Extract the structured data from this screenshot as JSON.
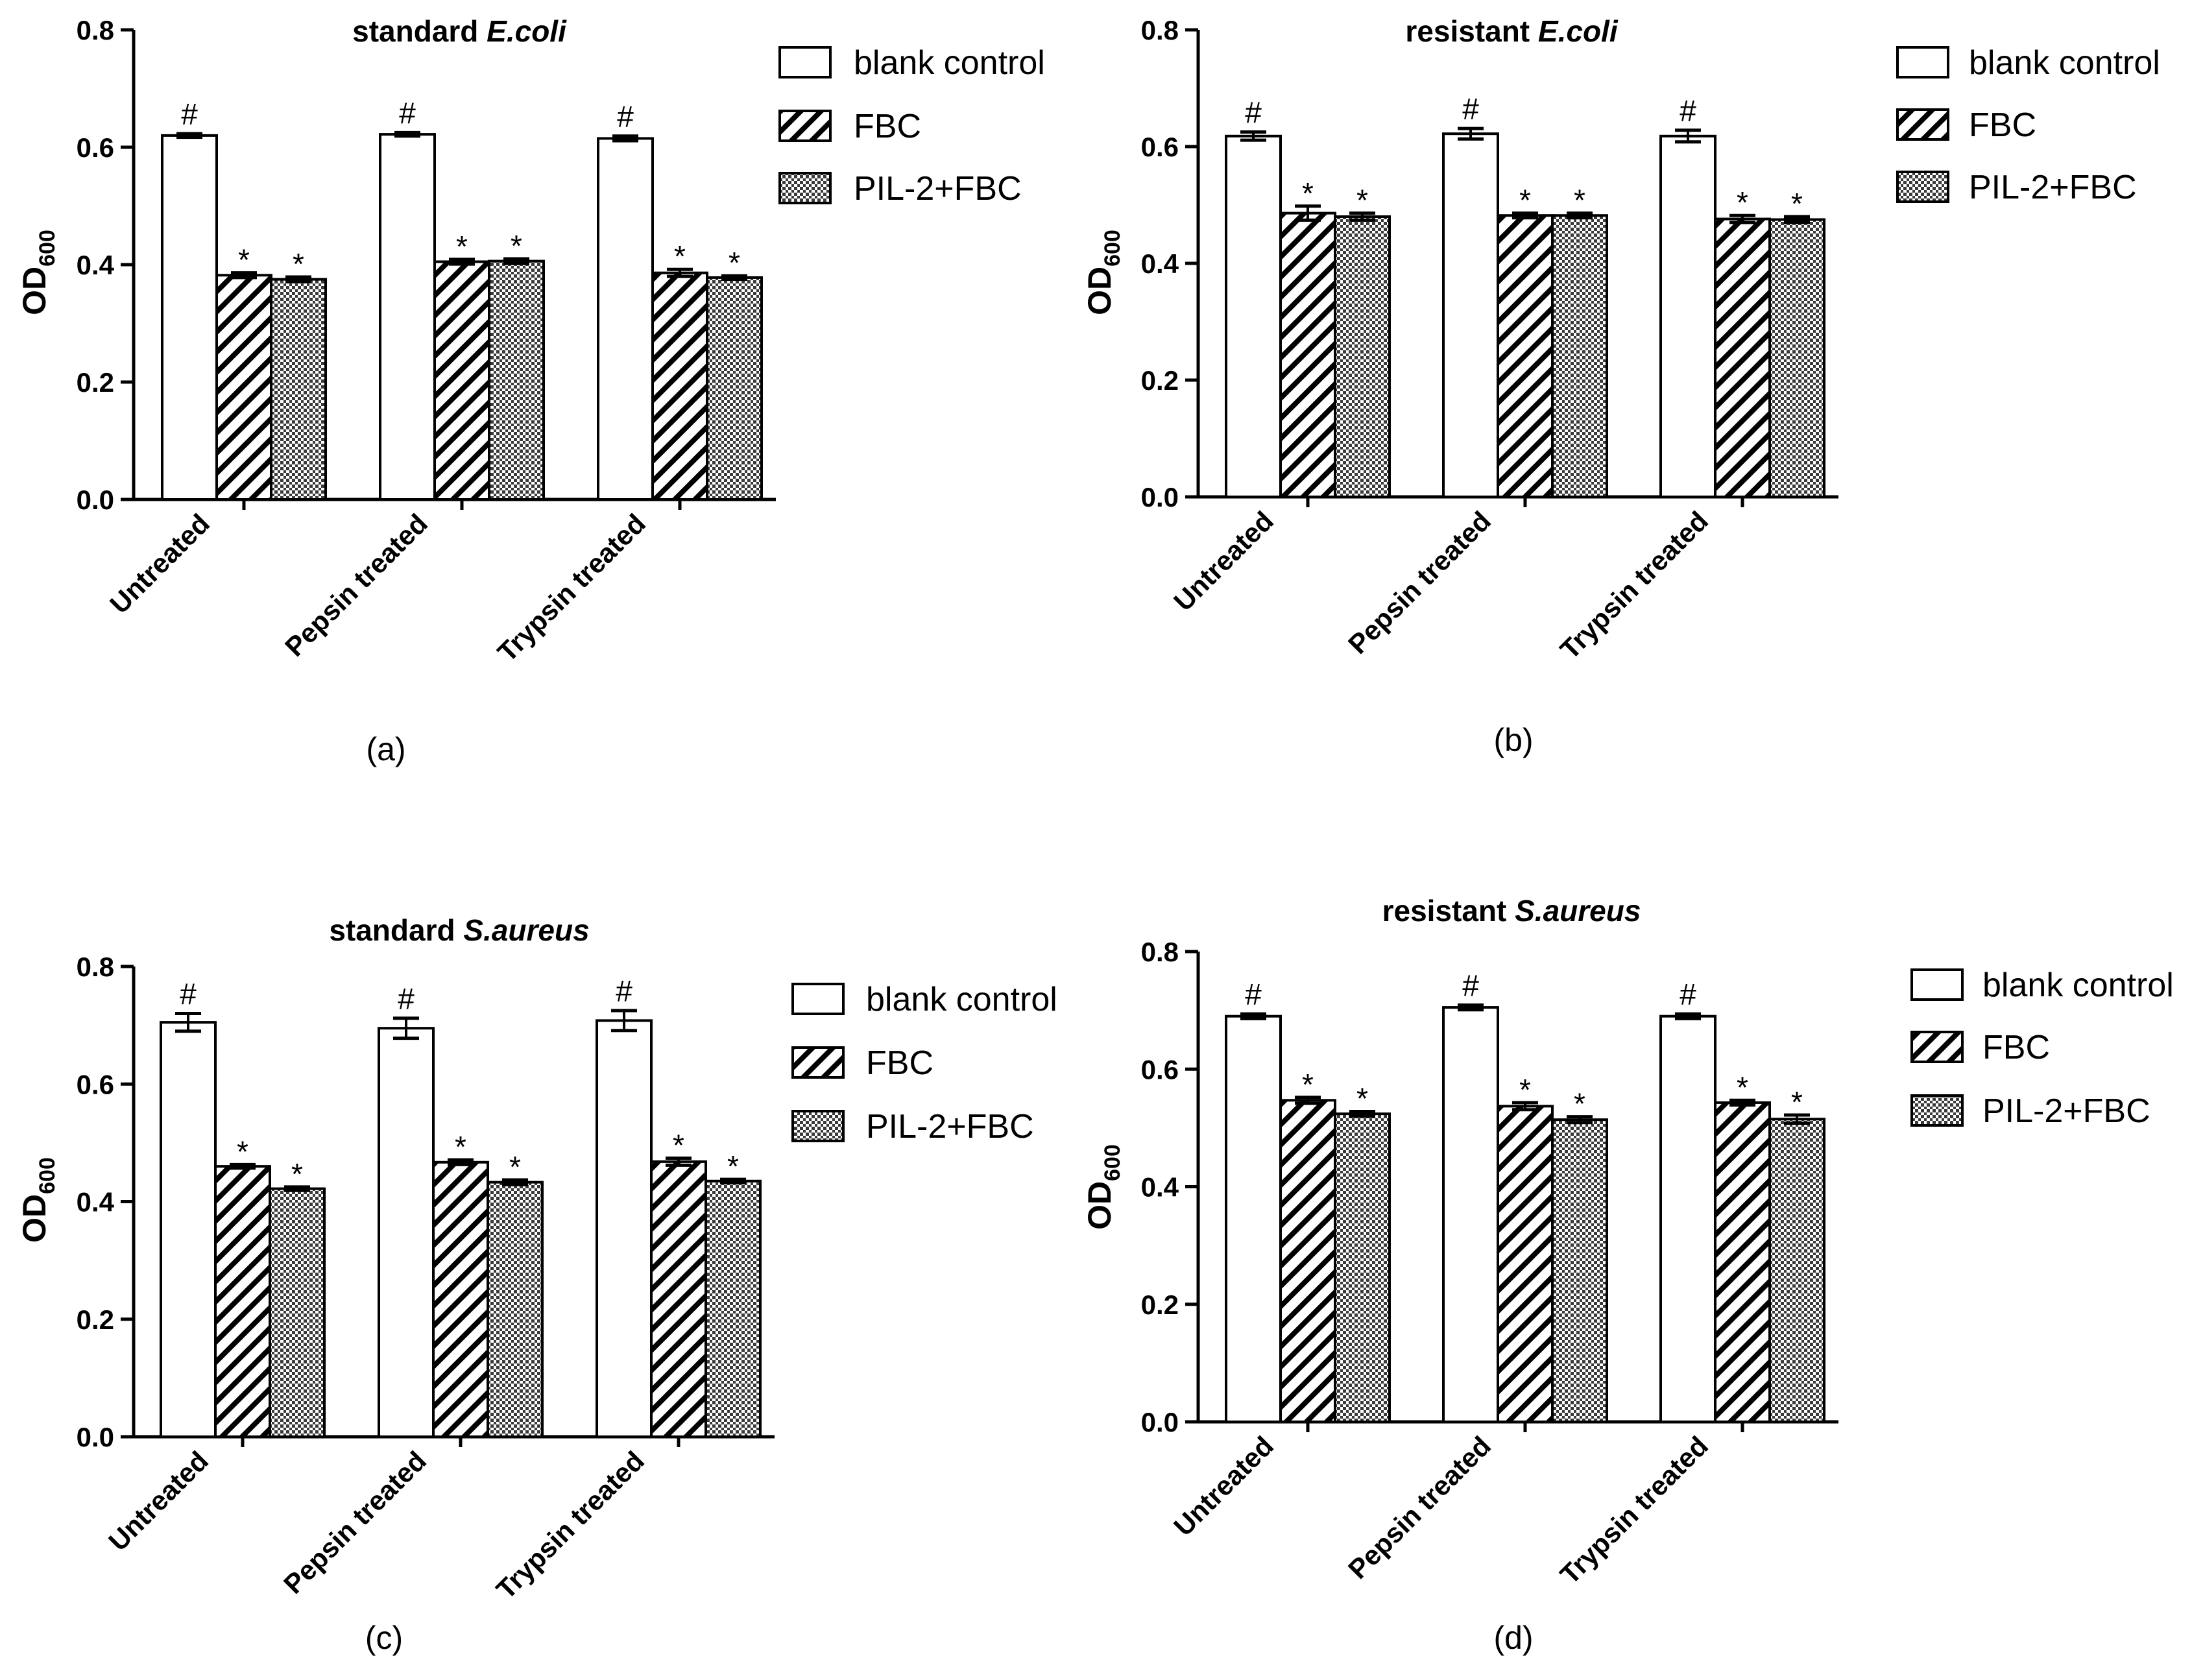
{
  "chart_data": [
    {
      "type": "bar",
      "panel_label": "(a)",
      "title_prefix": "standard ",
      "title_species": "E.coli",
      "ylabel_main": "OD",
      "ylabel_sub": "600",
      "ylim": [
        0,
        0.8
      ],
      "yticks": [
        "0.0",
        "0.2",
        "0.4",
        "0.6",
        "0.8"
      ],
      "ytick_values": [
        0,
        0.2,
        0.4,
        0.6,
        0.8
      ],
      "categories": [
        "Untreated",
        "Pepsin treated",
        "Trypsin treated"
      ],
      "series": [
        {
          "name": "blank control",
          "pattern": "none",
          "values": [
            0.62,
            0.622,
            0.615
          ],
          "errors": [
            0.003,
            0.003,
            0.004
          ],
          "markers": [
            "#",
            "#",
            "#"
          ]
        },
        {
          "name": "FBC",
          "pattern": "diagonal",
          "values": [
            0.382,
            0.405,
            0.386
          ],
          "errors": [
            0.004,
            0.004,
            0.006
          ],
          "markers": [
            "*",
            "*",
            "*"
          ]
        },
        {
          "name": "PIL-2+FBC",
          "pattern": "crosshatch",
          "values": [
            0.375,
            0.406,
            0.378
          ],
          "errors": [
            0.004,
            0.004,
            0.003
          ],
          "markers": [
            "*",
            "*",
            "*"
          ]
        }
      ]
    },
    {
      "type": "bar",
      "panel_label": "(b)",
      "title_prefix": "resistant ",
      "title_species": "E.coli",
      "ylabel_main": "OD",
      "ylabel_sub": "600",
      "ylim": [
        0,
        0.8
      ],
      "yticks": [
        "0.0",
        "0.2",
        "0.4",
        "0.6",
        "0.8"
      ],
      "ytick_values": [
        0,
        0.2,
        0.4,
        0.6,
        0.8
      ],
      "categories": [
        "Untreated",
        "Pepsin treated",
        "Trypsin treated"
      ],
      "series": [
        {
          "name": "blank control",
          "pattern": "none",
          "values": [
            0.618,
            0.622,
            0.618
          ],
          "errors": [
            0.007,
            0.009,
            0.01
          ],
          "markers": [
            "#",
            "#",
            "#"
          ]
        },
        {
          "name": "FBC",
          "pattern": "diagonal",
          "values": [
            0.486,
            0.482,
            0.476
          ],
          "errors": [
            0.012,
            0.004,
            0.006
          ],
          "markers": [
            "*",
            "*",
            "*"
          ]
        },
        {
          "name": "PIL-2+FBC",
          "pattern": "crosshatch",
          "values": [
            0.48,
            0.482,
            0.475
          ],
          "errors": [
            0.006,
            0.004,
            0.005
          ],
          "markers": [
            "*",
            "*",
            "*"
          ]
        }
      ]
    },
    {
      "type": "bar",
      "panel_label": "(c)",
      "title_prefix": "standard ",
      "title_species": "S.aureus",
      "ylabel_main": "OD",
      "ylabel_sub": "600",
      "ylim": [
        0,
        0.8
      ],
      "yticks": [
        "0.0",
        "0.2",
        "0.4",
        "0.6",
        "0.8"
      ],
      "ytick_values": [
        0,
        0.2,
        0.4,
        0.6,
        0.8
      ],
      "categories": [
        "Untreated",
        "Pepsin treated",
        "Trypsin treated"
      ],
      "series": [
        {
          "name": "blank control",
          "pattern": "none",
          "values": [
            0.705,
            0.695,
            0.708
          ],
          "errors": [
            0.015,
            0.017,
            0.017
          ],
          "markers": [
            "#",
            "#",
            "#"
          ]
        },
        {
          "name": "FBC",
          "pattern": "diagonal",
          "values": [
            0.46,
            0.467,
            0.468
          ],
          "errors": [
            0.003,
            0.004,
            0.006
          ],
          "markers": [
            "*",
            "*",
            "*"
          ]
        },
        {
          "name": "PIL-2+FBC",
          "pattern": "crosshatch",
          "values": [
            0.422,
            0.433,
            0.435
          ],
          "errors": [
            0.003,
            0.004,
            0.003
          ],
          "markers": [
            "*",
            "*",
            "*"
          ]
        }
      ]
    },
    {
      "type": "bar",
      "panel_label": "(d)",
      "title_prefix": "resistant ",
      "title_species": "S.aureus",
      "ylabel_main": "OD",
      "ylabel_sub": "600",
      "ylim": [
        0,
        0.8
      ],
      "yticks": [
        "0.0",
        "0.2",
        "0.4",
        "0.6",
        "0.8"
      ],
      "ytick_values": [
        0,
        0.2,
        0.4,
        0.6,
        0.8
      ],
      "categories": [
        "Untreated",
        "Pepsin treated",
        "Trypsin treated"
      ],
      "series": [
        {
          "name": "blank control",
          "pattern": "none",
          "values": [
            0.69,
            0.705,
            0.69
          ],
          "errors": [
            0.004,
            0.004,
            0.004
          ],
          "markers": [
            "#",
            "#",
            "#"
          ]
        },
        {
          "name": "FBC",
          "pattern": "diagonal",
          "values": [
            0.547,
            0.537,
            0.543
          ],
          "errors": [
            0.005,
            0.006,
            0.004
          ],
          "markers": [
            "*",
            "*",
            "*"
          ]
        },
        {
          "name": "PIL-2+FBC",
          "pattern": "crosshatch",
          "values": [
            0.524,
            0.514,
            0.515
          ],
          "errors": [
            0.004,
            0.005,
            0.007
          ],
          "markers": [
            "*",
            "*",
            "*"
          ]
        }
      ]
    }
  ]
}
